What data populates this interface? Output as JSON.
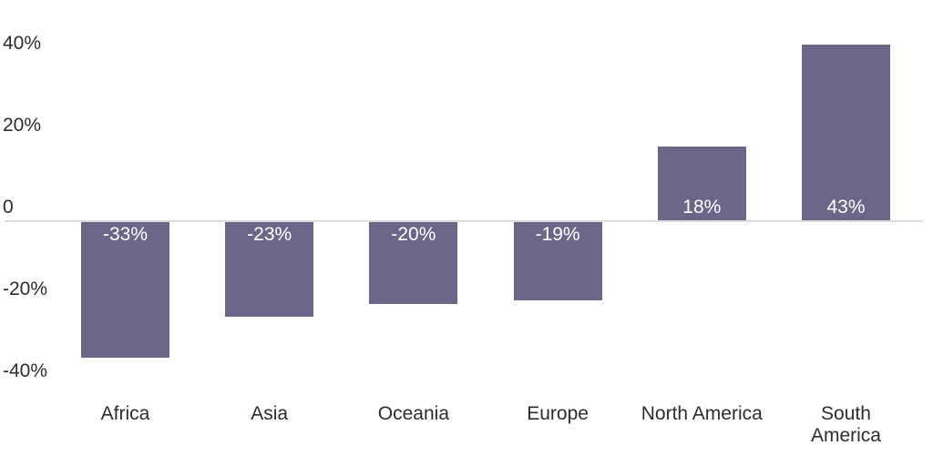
{
  "chart_data": {
    "type": "bar",
    "categories": [
      "Africa",
      "Asia",
      "Oceania",
      "Europe",
      "North America",
      "South America"
    ],
    "values": [
      -33,
      -23,
      -20,
      -19,
      18,
      43
    ],
    "bar_labels": [
      "-33%",
      "-23%",
      "-20%",
      "-19%",
      "18%",
      "43%"
    ],
    "category_display": [
      "Africa",
      "Asia",
      "Oceania",
      "Europe",
      "North America",
      "South\nAmerica"
    ],
    "yticks": [
      {
        "value": 40,
        "label": "40%"
      },
      {
        "value": 20,
        "label": "20%"
      },
      {
        "value": 0,
        "label": "0"
      },
      {
        "value": -20,
        "label": "-20%"
      },
      {
        "value": -40,
        "label": "-40%"
      }
    ],
    "ylim": [
      -45,
      45
    ],
    "title": "",
    "xlabel": "",
    "ylabel": "",
    "grid": false,
    "legend": false,
    "colors": {
      "bar": "#6e6689",
      "bar_label_text": "#ffffff",
      "axis_text": "#2d2d2d",
      "zero_line": "#dcdcdc",
      "background": "#ffffff"
    }
  }
}
